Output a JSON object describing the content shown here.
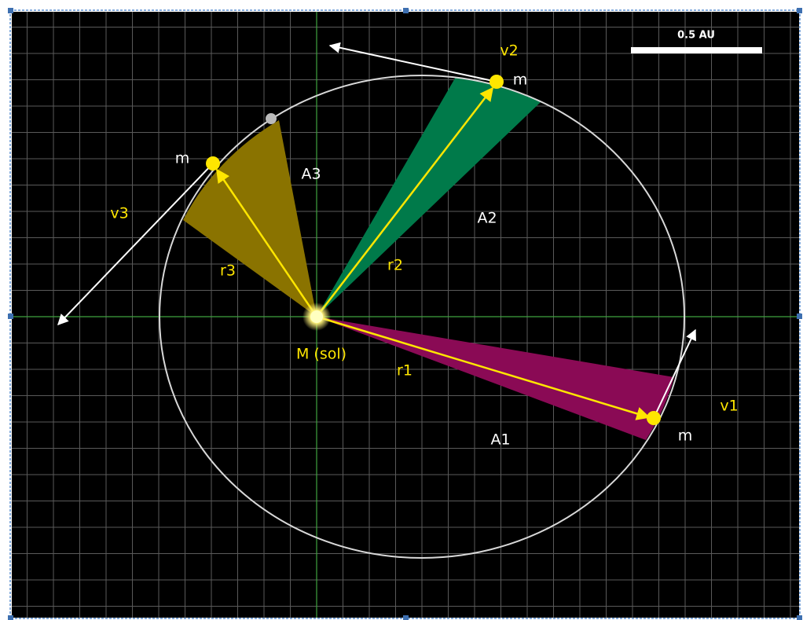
{
  "scale_bar": "0.5 AU",
  "sun": {
    "label": "M (sol)"
  },
  "sectors": [
    {
      "area": "A1",
      "radius": "r1",
      "velocity": "v1",
      "mass": "m"
    },
    {
      "area": "A2",
      "radius": "r2",
      "velocity": "v2",
      "mass": "m"
    },
    {
      "area": "A3",
      "radius": "r3",
      "velocity": "v3",
      "mass": "m"
    }
  ]
}
